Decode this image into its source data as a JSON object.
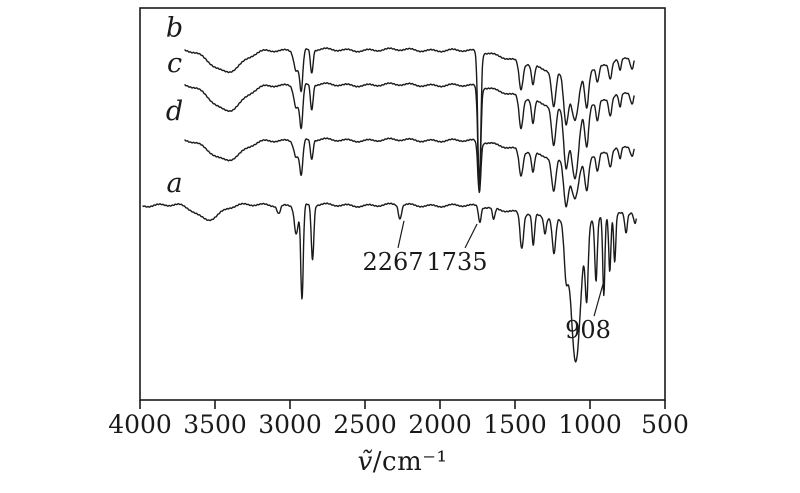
{
  "figure": {
    "background": "#ffffff",
    "line_color": "#1a1a1a"
  },
  "chart_data": {
    "type": "line",
    "title": "",
    "xlabel": "ṽ/cm⁻¹",
    "xlabel_symbol": "ṽ",
    "xlabel_unit": "/cm⁻¹",
    "x_axis": {
      "min": 500,
      "max": 4000,
      "reversed": true,
      "ticks": [
        4000,
        3500,
        3000,
        2500,
        2000,
        1500,
        1000,
        500
      ],
      "tick_labels": [
        "4000",
        "3500",
        "3000",
        "2500",
        "2000",
        "1500",
        "1000",
        "500"
      ]
    },
    "y_axis": {
      "visible": false,
      "ticks": [],
      "label": ""
    },
    "annotations": [
      {
        "text": "2267",
        "label": {
          "wn": 2313,
          "u": 64.8
        },
        "line": {
          "from": {
            "wn": 2280,
            "u": 61.2
          },
          "to": {
            "wn": 2240,
            "u": 54.3
          }
        }
      },
      {
        "text": "1735",
        "label": {
          "wn": 1887,
          "u": 64.8
        },
        "line": {
          "from": {
            "wn": 1833,
            "u": 61.2
          },
          "to": {
            "wn": 1753,
            "u": 55.1
          }
        }
      },
      {
        "text": "908",
        "label": {
          "wn": 1013,
          "u": 82.1
        },
        "line": {
          "from": {
            "wn": 973,
            "u": 78.6
          },
          "to": {
            "wn": 913,
            "u": 70.4
          }
        }
      }
    ],
    "series": [
      {
        "name": "b",
        "label": {
          "wn": 3770,
          "u": 5.0
        },
        "start": 3700,
        "end": 705,
        "baseline": 10.7,
        "peaks": [
          [
            3420,
            150,
            5.5
          ],
          [
            2958,
            22,
            5
          ],
          [
            2925,
            15,
            10
          ],
          [
            2855,
            12,
            6
          ],
          [
            1738,
            14,
            34
          ],
          [
            1460,
            18,
            7
          ],
          [
            1380,
            14,
            5
          ],
          [
            1242,
            20,
            9
          ],
          [
            1160,
            22,
            12
          ],
          [
            1100,
            35,
            12
          ],
          [
            1022,
            18,
            9
          ],
          [
            950,
            14,
            4
          ],
          [
            865,
            14,
            4
          ],
          [
            800,
            12,
            3
          ],
          [
            720,
            15,
            3
          ],
          [
            1150,
            380,
            6
          ]
        ]
      },
      {
        "name": "c",
        "label": {
          "wn": 3770,
          "u": 14.0
        },
        "start": 3700,
        "end": 705,
        "baseline": 19.6,
        "peaks": [
          [
            3415,
            150,
            6.5
          ],
          [
            2958,
            22,
            5.5
          ],
          [
            2925,
            15,
            10.5
          ],
          [
            2855,
            12,
            6.5
          ],
          [
            1738,
            14,
            25
          ],
          [
            1460,
            18,
            8
          ],
          [
            1380,
            14,
            6
          ],
          [
            1242,
            20,
            10
          ],
          [
            1160,
            22,
            14
          ],
          [
            1100,
            35,
            18
          ],
          [
            1022,
            18,
            10
          ],
          [
            950,
            14,
            5
          ],
          [
            865,
            14,
            4.5
          ],
          [
            800,
            12,
            3.5
          ],
          [
            720,
            15,
            3
          ],
          [
            1150,
            380,
            6
          ]
        ]
      },
      {
        "name": "d",
        "label": {
          "wn": 3770,
          "u": 26.3
        },
        "start": 3700,
        "end": 705,
        "baseline": 33.7,
        "peaks": [
          [
            3420,
            150,
            5
          ],
          [
            2958,
            22,
            4
          ],
          [
            2925,
            15,
            8.5
          ],
          [
            2855,
            12,
            5
          ],
          [
            1738,
            14,
            13
          ],
          [
            1460,
            18,
            6.5
          ],
          [
            1380,
            14,
            5
          ],
          [
            1242,
            20,
            8.5
          ],
          [
            1160,
            22,
            11
          ],
          [
            1100,
            35,
            10
          ],
          [
            1022,
            18,
            8
          ],
          [
            950,
            14,
            4.5
          ],
          [
            865,
            14,
            4
          ],
          [
            800,
            12,
            3
          ],
          [
            720,
            15,
            2.5
          ],
          [
            1150,
            380,
            5
          ]
        ]
      },
      {
        "name": "a",
        "label": {
          "wn": 3770,
          "u": 44.6
        },
        "start": 3980,
        "end": 690,
        "baseline": 50.3,
        "peaks": [
          [
            3550,
            110,
            3.5
          ],
          [
            3075,
            15,
            2
          ],
          [
            2958,
            18,
            7
          ],
          [
            2920,
            12,
            24
          ],
          [
            2850,
            12,
            14
          ],
          [
            2267,
            14,
            3.5
          ],
          [
            1735,
            12,
            4
          ],
          [
            1642,
            12,
            3
          ],
          [
            1455,
            16,
            9
          ],
          [
            1378,
            12,
            8
          ],
          [
            1300,
            12,
            4
          ],
          [
            1240,
            16,
            9
          ],
          [
            1160,
            18,
            11
          ],
          [
            1095,
            45,
            36
          ],
          [
            1022,
            14,
            18
          ],
          [
            960,
            12,
            16
          ],
          [
            908,
            10,
            20
          ],
          [
            868,
            10,
            14
          ],
          [
            835,
            10,
            12
          ],
          [
            760,
            12,
            5
          ],
          [
            700,
            12,
            3
          ],
          [
            1100,
            420,
            4
          ]
        ]
      }
    ]
  }
}
